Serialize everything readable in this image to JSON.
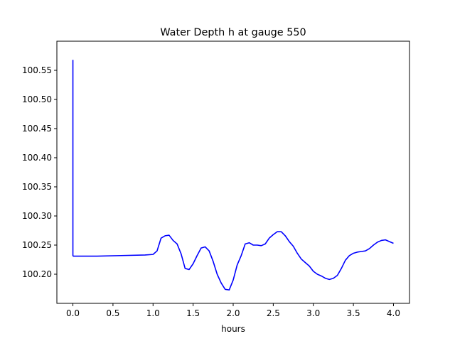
{
  "chart_data": {
    "type": "line",
    "title": "Water Depth h at gauge 550",
    "xlabel": "hours",
    "ylabel": "",
    "xlim": [
      -0.2,
      4.2
    ],
    "ylim": [
      100.15,
      100.6
    ],
    "grid": false,
    "xticks": [
      0.0,
      0.5,
      1.0,
      1.5,
      2.0,
      2.5,
      3.0,
      3.5,
      4.0
    ],
    "xtick_labels": [
      "0.0",
      "0.5",
      "1.0",
      "1.5",
      "2.0",
      "2.5",
      "3.0",
      "3.5",
      "4.0"
    ],
    "yticks": [
      100.2,
      100.25,
      100.3,
      100.35,
      100.4,
      100.45,
      100.5,
      100.55
    ],
    "ytick_labels": [
      "100.20",
      "100.25",
      "100.30",
      "100.35",
      "100.40",
      "100.45",
      "100.50",
      "100.55"
    ],
    "series": [
      {
        "color": "#0000ff",
        "x": [
          0.0,
          0.0,
          0.005,
          0.3,
          0.6,
          0.9,
          1.0,
          1.05,
          1.1,
          1.15,
          1.2,
          1.25,
          1.3,
          1.35,
          1.4,
          1.45,
          1.5,
          1.55,
          1.6,
          1.65,
          1.7,
          1.75,
          1.8,
          1.85,
          1.9,
          1.95,
          2.0,
          2.05,
          2.1,
          2.15,
          2.2,
          2.25,
          2.3,
          2.35,
          2.4,
          2.45,
          2.5,
          2.55,
          2.6,
          2.65,
          2.7,
          2.75,
          2.8,
          2.85,
          2.9,
          2.95,
          3.0,
          3.05,
          3.1,
          3.15,
          3.2,
          3.25,
          3.3,
          3.35,
          3.4,
          3.45,
          3.5,
          3.55,
          3.6,
          3.65,
          3.7,
          3.75,
          3.8,
          3.85,
          3.9,
          3.95,
          4.0
        ],
        "y": [
          100.568,
          100.232,
          100.231,
          100.231,
          100.232,
          100.233,
          100.234,
          100.24,
          100.262,
          100.266,
          100.267,
          100.258,
          100.252,
          100.235,
          100.21,
          100.208,
          100.218,
          100.232,
          100.245,
          100.247,
          100.24,
          100.222,
          100.2,
          100.185,
          100.174,
          100.173,
          100.19,
          100.216,
          100.232,
          100.252,
          100.254,
          100.25,
          100.25,
          100.249,
          100.252,
          100.262,
          100.268,
          100.273,
          100.273,
          100.266,
          100.256,
          100.248,
          100.236,
          100.226,
          100.22,
          100.214,
          100.205,
          100.2,
          100.197,
          100.193,
          100.191,
          100.193,
          100.198,
          100.21,
          100.224,
          100.232,
          100.236,
          100.238,
          100.239,
          100.24,
          100.244,
          100.25,
          100.255,
          100.258,
          100.259,
          100.256,
          100.253
        ]
      }
    ]
  }
}
